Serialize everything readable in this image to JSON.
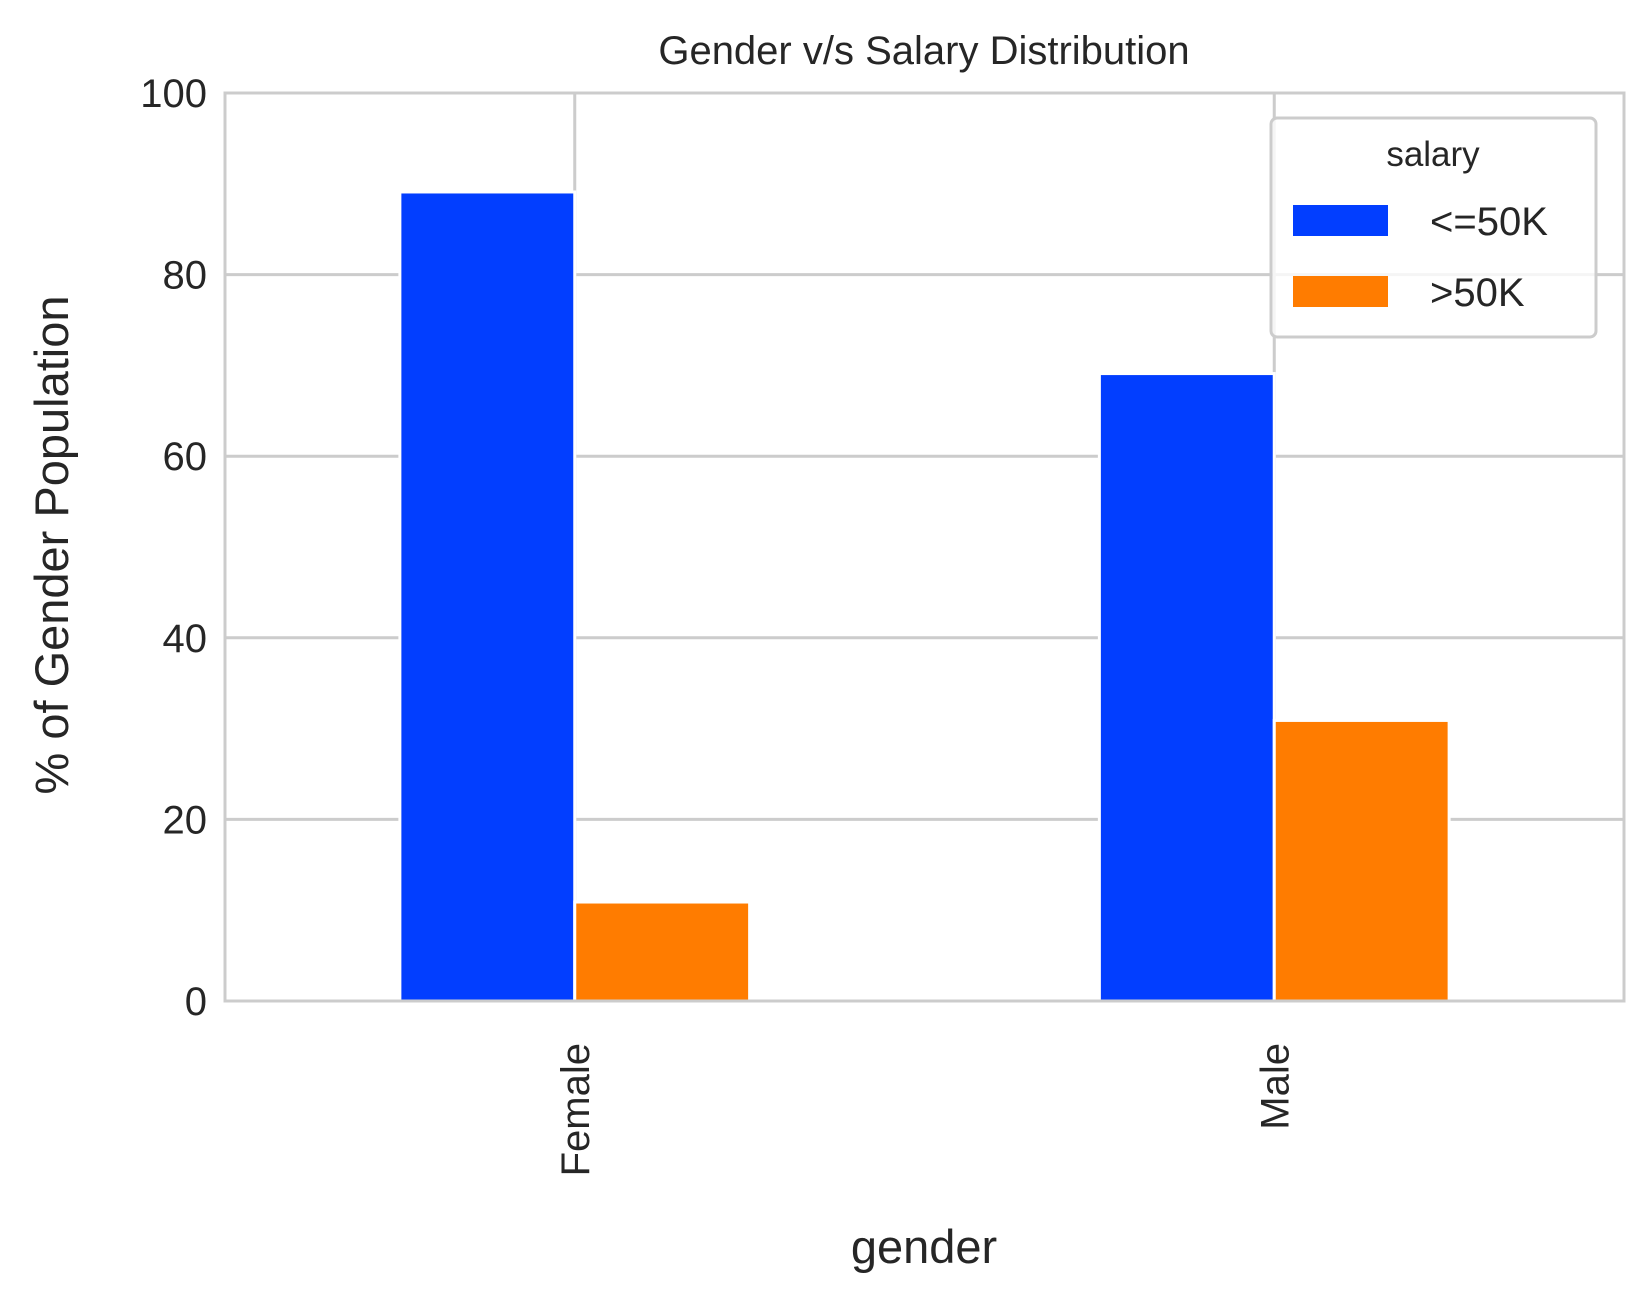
{
  "chart_data": {
    "type": "bar",
    "title": "Gender v/s Salary Distribution",
    "xlabel": "gender",
    "ylabel": "% of Gender Population",
    "categories": [
      "Female",
      "Male"
    ],
    "series": [
      {
        "name": "<=50K",
        "values": [
          89.1,
          69.1
        ],
        "color": "#023eff"
      },
      {
        "name": ">50K",
        "values": [
          10.9,
          30.9
        ],
        "color": "#ff7c00"
      }
    ],
    "ylim": [
      0,
      100
    ],
    "yticks": [
      "0",
      "20",
      "40",
      "60",
      "80",
      "100"
    ],
    "grid": true,
    "legend": {
      "title": "salary",
      "placement": "upper right"
    }
  }
}
